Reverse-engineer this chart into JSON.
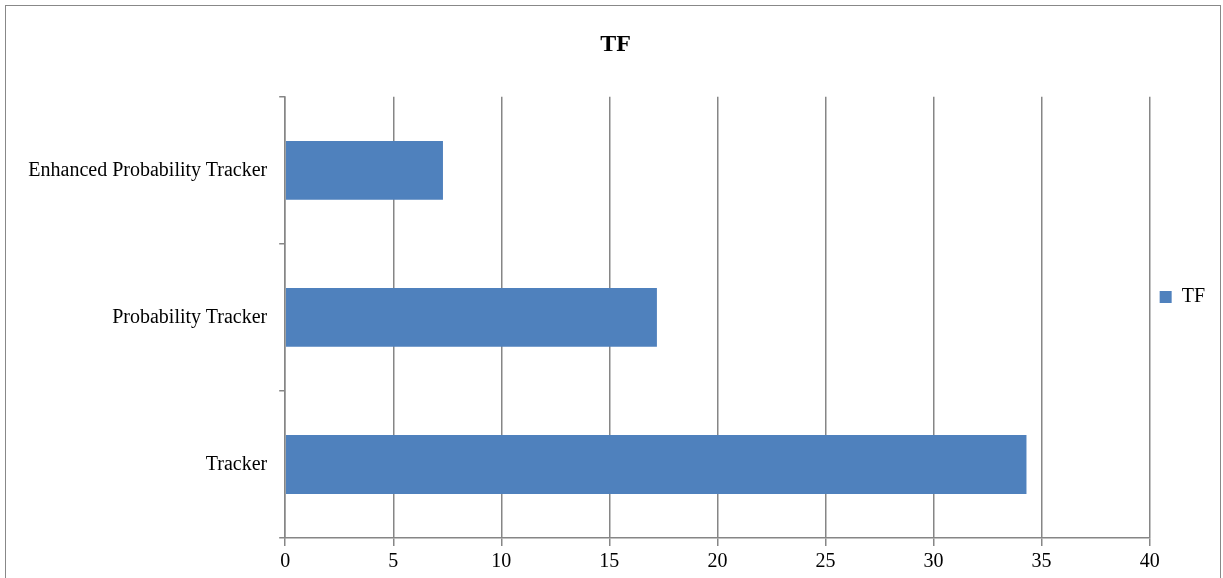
{
  "chart_data": {
    "type": "bar",
    "orientation": "horizontal",
    "title": "TF",
    "categories": [
      "Enhanced Probability Tracker",
      "Probability Tracker",
      "Tracker"
    ],
    "series": [
      {
        "name": "TF",
        "color": "#4f81bd",
        "values": [
          7.3,
          17.2,
          34.3
        ]
      }
    ],
    "xlim": [
      0,
      40
    ],
    "xticks": [
      0,
      5,
      10,
      15,
      20,
      25,
      30,
      35,
      40
    ],
    "grid": "x",
    "legend": "right"
  }
}
